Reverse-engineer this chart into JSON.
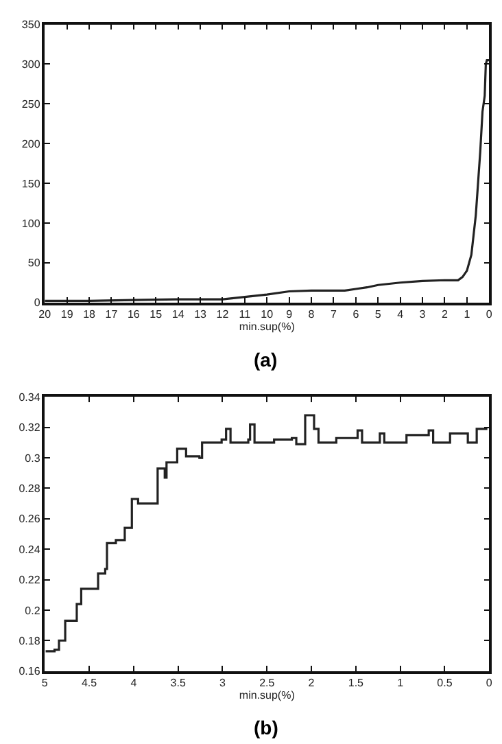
{
  "chart_data": [
    {
      "type": "line",
      "xlabel": "min.sup(%)",
      "annotations": [
        "(a)"
      ],
      "xlim": [
        20,
        0
      ],
      "xticks": [
        20,
        19,
        18,
        17,
        16,
        15,
        14,
        13,
        12,
        11,
        10,
        9,
        8,
        7,
        6,
        5,
        4,
        3,
        2,
        1,
        0
      ],
      "ylim": [
        0,
        350
      ],
      "yticks": [
        0,
        50,
        100,
        150,
        200,
        250,
        300,
        350
      ],
      "series": [
        {
          "color": "#222222",
          "x": [
            20,
            18,
            16,
            14,
            12,
            11,
            10,
            9,
            8,
            7,
            6.5,
            6,
            5.5,
            5,
            4,
            3,
            2,
            1.4,
            1.2,
            1,
            0.8,
            0.6,
            0.5,
            0.4,
            0.3,
            0.2,
            0.15,
            0.1,
            0
          ],
          "values": [
            2,
            2,
            3,
            4,
            4,
            7,
            10,
            14,
            15,
            15,
            15,
            17,
            19,
            22,
            25,
            27,
            28,
            28,
            32,
            40,
            60,
            110,
            150,
            190,
            240,
            260,
            300,
            305,
            305
          ]
        }
      ]
    },
    {
      "type": "step",
      "xlabel": "min.sup(%)",
      "annotations": [
        "(b)"
      ],
      "xlim": [
        5,
        0
      ],
      "xticks": [
        5,
        4.5,
        4,
        3.5,
        3,
        2.5,
        2,
        1.5,
        1,
        0.5,
        0
      ],
      "ylim": [
        0.16,
        0.34
      ],
      "yticks": [
        0.16,
        0.18,
        0.2,
        0.22,
        0.24,
        0.26,
        0.28,
        0.3,
        0.32,
        0.34
      ],
      "series": [
        {
          "color": "#222222",
          "x": [
            4.99,
            4.89,
            4.84,
            4.77,
            4.64,
            4.59,
            4.42,
            4.4,
            4.32,
            4.3,
            4.2,
            4.1,
            4.02,
            3.95,
            3.75,
            3.73,
            3.65,
            3.63,
            3.51,
            3.41,
            3.26,
            3.23,
            3.01,
            2.96,
            2.91,
            2.71,
            2.69,
            2.64,
            2.42,
            2.22,
            2.17,
            2.07,
            1.97,
            1.92,
            1.72,
            1.48,
            1.43,
            1.23,
            1.18,
            0.93,
            0.68,
            0.63,
            0.44,
            0.24,
            0.14,
            0.02
          ],
          "values": [
            0.173,
            0.174,
            0.18,
            0.193,
            0.204,
            0.214,
            0.214,
            0.224,
            0.227,
            0.244,
            0.246,
            0.254,
            0.273,
            0.27,
            0.27,
            0.293,
            0.287,
            0.297,
            0.306,
            0.301,
            0.3,
            0.31,
            0.312,
            0.319,
            0.31,
            0.312,
            0.322,
            0.31,
            0.312,
            0.313,
            0.309,
            0.328,
            0.319,
            0.31,
            0.313,
            0.318,
            0.31,
            0.316,
            0.31,
            0.315,
            0.318,
            0.31,
            0.316,
            0.31,
            0.319,
            0.319
          ]
        }
      ]
    }
  ]
}
